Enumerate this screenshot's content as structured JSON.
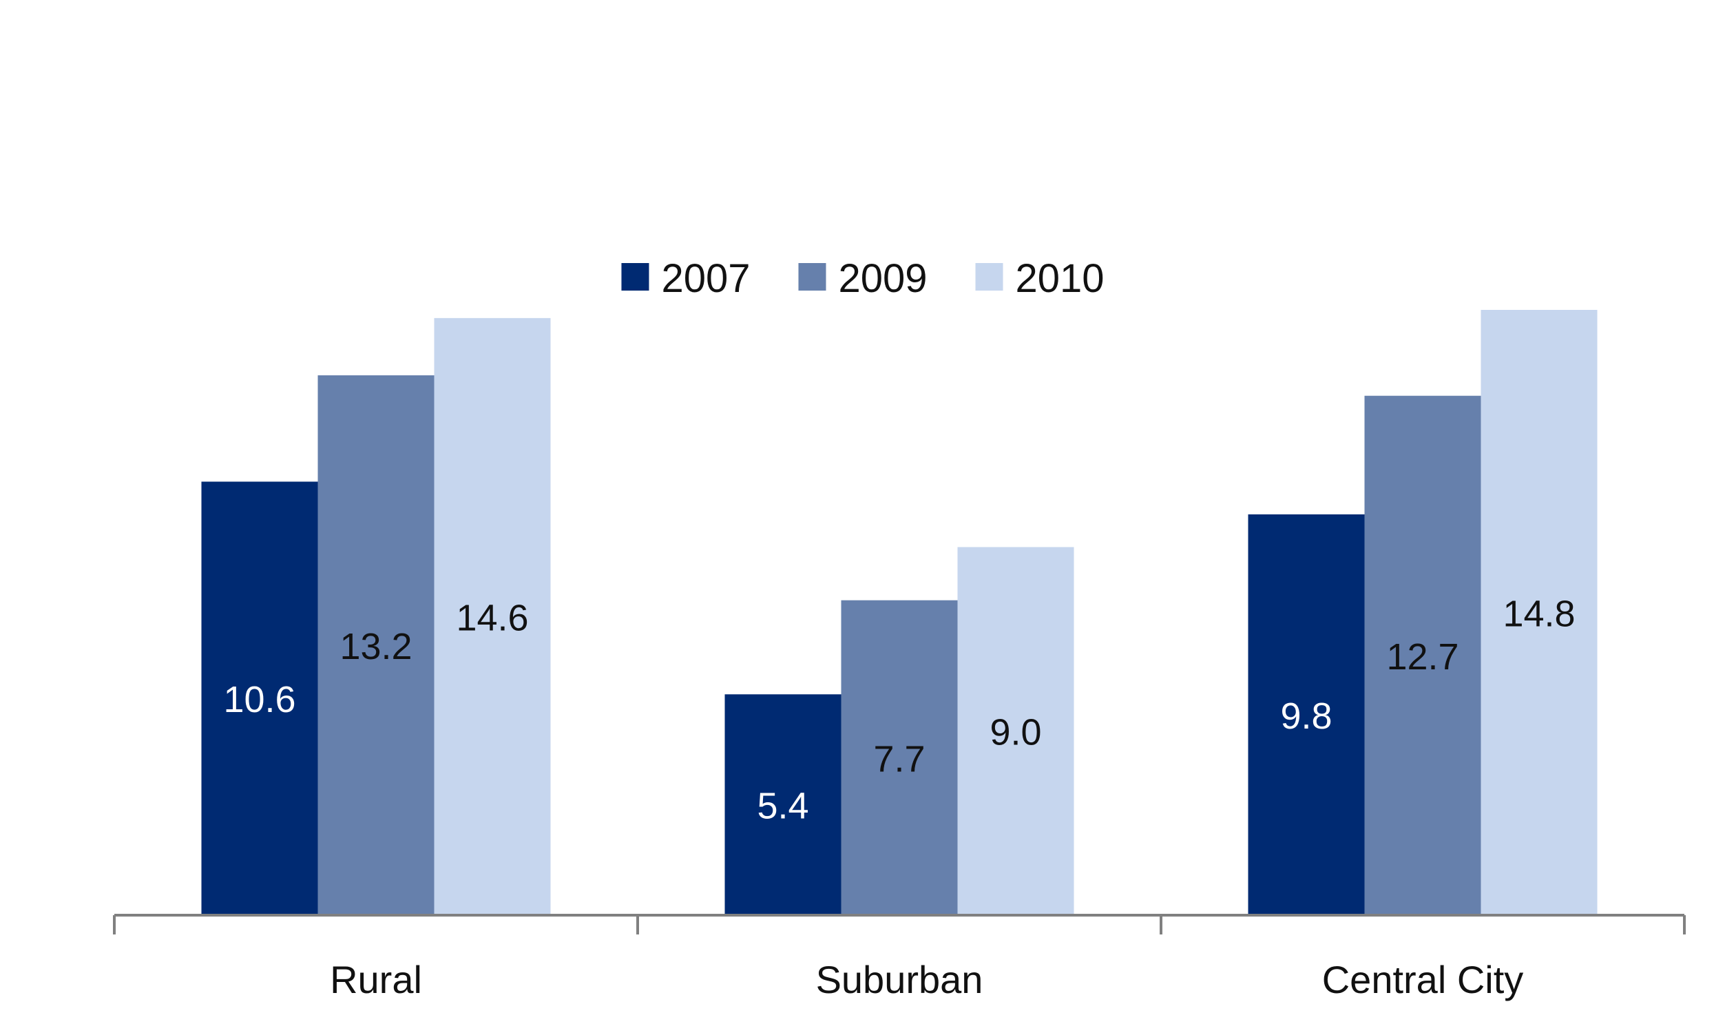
{
  "chart_data": {
    "type": "bar",
    "title": "",
    "xlabel": "",
    "ylabel": "",
    "categories": [
      "Rural",
      "Suburban",
      "Central City"
    ],
    "series": [
      {
        "name": "2007",
        "values": [
          10.6,
          5.4,
          9.8
        ],
        "color": "#002a72",
        "label_color": "#ffffff"
      },
      {
        "name": "2009",
        "values": [
          13.2,
          7.7,
          12.7
        ],
        "color": "#6680ac",
        "label_color": "#111111"
      },
      {
        "name": "2010",
        "values": [
          14.6,
          9.0,
          14.8
        ],
        "color": "#c6d6ee",
        "label_color": "#111111"
      }
    ],
    "ylim": [
      0,
      14.8
    ],
    "legend_position": "top-center",
    "grid": false,
    "y_axis_visible": false
  }
}
